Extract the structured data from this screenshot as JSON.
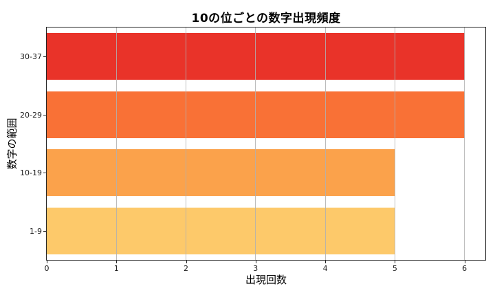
{
  "chart_data": {
    "type": "bar",
    "orientation": "horizontal",
    "title": "10の位ごとの数字出現頻度",
    "xlabel": "出現回数",
    "ylabel": "数字の範囲",
    "categories": [
      "30-37",
      "20-29",
      "10-19",
      "1-9"
    ],
    "values": [
      6,
      6,
      5,
      5
    ],
    "bar_colors": [
      "#e93329",
      "#f97136",
      "#fba24b",
      "#fdc96a"
    ],
    "xlim": [
      0,
      6.3
    ],
    "xticks": [
      0,
      1,
      2,
      3,
      4,
      5,
      6
    ],
    "xtick_labels": [
      "0",
      "1",
      "2",
      "3",
      "4",
      "5",
      "6"
    ],
    "grid": "vertical",
    "grid_color": "#b0b0b0",
    "spine_color": "#262626",
    "bar_height_fraction": 0.8,
    "legend": "none"
  }
}
